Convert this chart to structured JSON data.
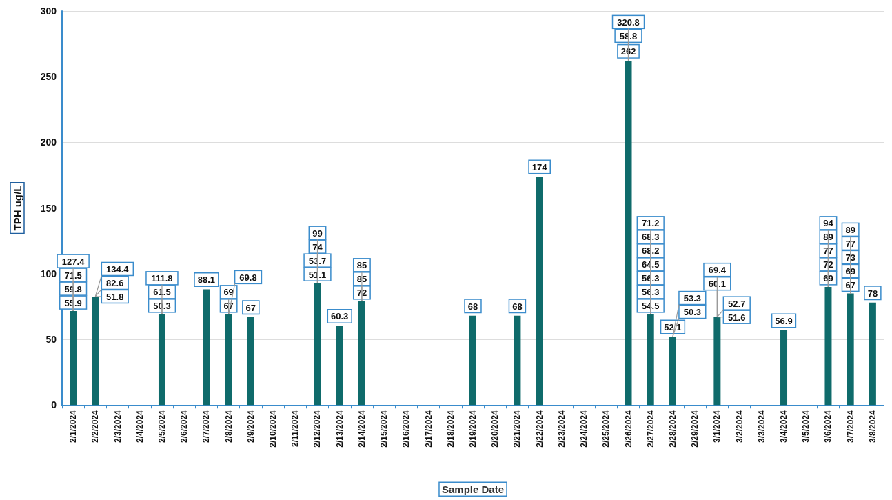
{
  "chart_data": {
    "type": "bar",
    "xlabel": "Sample Date",
    "ylabel": "TPH ug/L",
    "categories": [
      "2/1/2024",
      "2/2/2024",
      "2/3/2024",
      "2/4/2024",
      "2/5/2024",
      "2/6/2024",
      "2/7/2024",
      "2/8/2024",
      "2/9/2024",
      "2/10/2024",
      "2/11/2024",
      "2/12/2024",
      "2/13/2024",
      "2/14/2024",
      "2/15/2024",
      "2/16/2024",
      "2/17/2024",
      "2/18/2024",
      "2/19/2024",
      "2/20/2024",
      "2/21/2024",
      "2/22/2024",
      "2/23/2024",
      "2/24/2024",
      "2/25/2024",
      "2/26/2024",
      "2/27/2024",
      "2/28/2024",
      "2/29/2024",
      "3/1/2024",
      "3/2/2024",
      "3/3/2024",
      "3/4/2024",
      "3/5/2024",
      "3/6/2024",
      "3/7/2024",
      "3/8/2024"
    ],
    "values": [
      71.5,
      82.6,
      null,
      null,
      69,
      null,
      88.1,
      69,
      67,
      null,
      null,
      93,
      60.3,
      79,
      null,
      null,
      null,
      null,
      68,
      null,
      68,
      174,
      null,
      null,
      null,
      262,
      69,
      52.1,
      null,
      67,
      null,
      null,
      56.9,
      null,
      90,
      85,
      78
    ],
    "value_labels": [
      null,
      null,
      null,
      null,
      null,
      null,
      "88.1",
      null,
      "67",
      null,
      null,
      null,
      "60.3",
      null,
      null,
      null,
      null,
      null,
      "68",
      null,
      "68",
      "174",
      null,
      null,
      null,
      "262",
      null,
      "52.1",
      null,
      null,
      null,
      null,
      "56.9",
      null,
      null,
      null,
      "78"
    ],
    "color": "#0f6b6b",
    "ylim": [
      0,
      300
    ],
    "yticks": [
      0,
      50,
      100,
      150,
      200,
      250,
      300
    ],
    "grid": "y",
    "annotations": [
      {
        "text": "55.9",
        "x": "2/1/2024",
        "y": 71.5
      },
      {
        "text": "59.8",
        "x": "2/1/2024",
        "y": 71.5
      },
      {
        "text": "71.5",
        "x": "2/1/2024",
        "y": 71.5
      },
      {
        "text": "127.4",
        "x": "2/1/2024",
        "y": 71.5
      },
      {
        "text": "51.8",
        "x": "2/2/2024",
        "y": 82.6
      },
      {
        "text": "82.6",
        "x": "2/2/2024",
        "y": 82.6
      },
      {
        "text": "134.4",
        "x": "2/2/2024",
        "y": 82.6
      },
      {
        "text": "50.3",
        "x": "2/5/2024",
        "y": 69
      },
      {
        "text": "61.5",
        "x": "2/5/2024",
        "y": 69
      },
      {
        "text": "111.8",
        "x": "2/5/2024",
        "y": 69
      },
      {
        "text": "67",
        "x": "2/8/2024",
        "y": 69
      },
      {
        "text": "69",
        "x": "2/8/2024",
        "y": 69
      },
      {
        "text": "69.8",
        "x": "2/8/2024",
        "y": 69
      },
      {
        "text": "51.1",
        "x": "2/12/2024",
        "y": 93
      },
      {
        "text": "53.7",
        "x": "2/12/2024",
        "y": 93
      },
      {
        "text": "74",
        "x": "2/12/2024",
        "y": 93
      },
      {
        "text": "99",
        "x": "2/12/2024",
        "y": 93
      },
      {
        "text": "72",
        "x": "2/14/2024",
        "y": 79
      },
      {
        "text": "85",
        "x": "2/14/2024",
        "y": 79
      },
      {
        "text": "85",
        "x": "2/14/2024",
        "y": 79
      },
      {
        "text": "58.8",
        "x": "2/26/2024",
        "y": 262
      },
      {
        "text": "320.8",
        "x": "2/26/2024",
        "y": 262
      },
      {
        "text": "54.5",
        "x": "2/27/2024",
        "y": 69
      },
      {
        "text": "56.3",
        "x": "2/27/2024",
        "y": 69
      },
      {
        "text": "56.3",
        "x": "2/27/2024",
        "y": 69
      },
      {
        "text": "64.5",
        "x": "2/27/2024",
        "y": 69
      },
      {
        "text": "68.2",
        "x": "2/27/2024",
        "y": 69
      },
      {
        "text": "68.3",
        "x": "2/27/2024",
        "y": 69
      },
      {
        "text": "71.2",
        "x": "2/27/2024",
        "y": 69
      },
      {
        "text": "50.3",
        "x": "2/28/2024",
        "y": 52.1
      },
      {
        "text": "53.3",
        "x": "2/28/2024",
        "y": 52.1
      },
      {
        "text": "51.6",
        "x": "3/1/2024",
        "y": 67
      },
      {
        "text": "52.7",
        "x": "3/1/2024",
        "y": 67
      },
      {
        "text": "60.1",
        "x": "3/1/2024",
        "y": 67
      },
      {
        "text": "69.4",
        "x": "3/1/2024",
        "y": 67
      },
      {
        "text": "69",
        "x": "3/6/2024",
        "y": 90
      },
      {
        "text": "72",
        "x": "3/6/2024",
        "y": 90
      },
      {
        "text": "77",
        "x": "3/6/2024",
        "y": 90
      },
      {
        "text": "89",
        "x": "3/6/2024",
        "y": 90
      },
      {
        "text": "94",
        "x": "3/6/2024",
        "y": 90
      },
      {
        "text": "67",
        "x": "3/7/2024",
        "y": 85
      },
      {
        "text": "69",
        "x": "3/7/2024",
        "y": 85
      },
      {
        "text": "73",
        "x": "3/7/2024",
        "y": 85
      },
      {
        "text": "77",
        "x": "3/7/2024",
        "y": 85
      },
      {
        "text": "89",
        "x": "3/7/2024",
        "y": 85
      }
    ]
  }
}
